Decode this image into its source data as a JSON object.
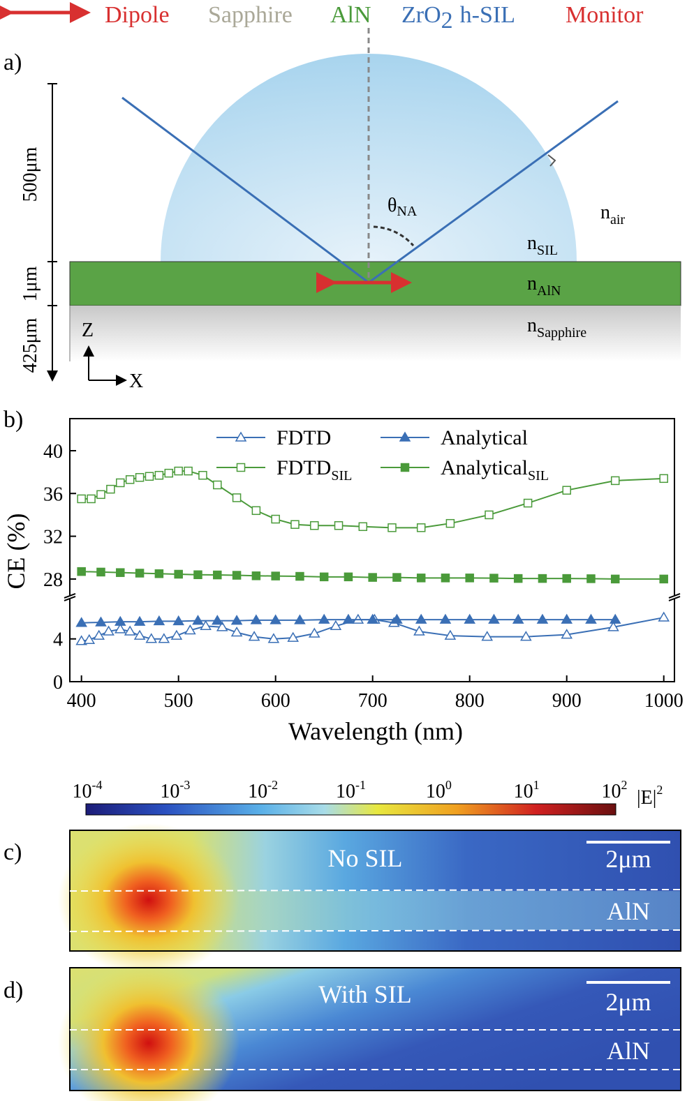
{
  "legend_top": {
    "dipole": "Dipole",
    "sapphire": "Sapphire",
    "aln": "AlN",
    "sil": {
      "text": "ZrO",
      "subscript": "2",
      "suffix": "h-SIL"
    },
    "monitor": "Monitor"
  },
  "panel_a": {
    "label": "a)",
    "dim_sil": "500μm",
    "dim_aln": "1μm",
    "dim_sapphire": "425μm",
    "theta": {
      "text": "θ",
      "subscript": "NA"
    },
    "n_air": {
      "text": "n",
      "subscript": "air"
    },
    "n_sil": {
      "text": "n",
      "subscript": "SIL"
    },
    "n_aln": {
      "text": "n",
      "subscript": "AlN"
    },
    "n_sapphire": {
      "text": "n",
      "subscript": "Sapphire"
    },
    "axis_z": "Z",
    "axis_x": "X"
  },
  "chart_data": {
    "type": "line",
    "panel_label": "b)",
    "xlabel": "Wavelength (nm)",
    "ylabel": "CE (%)",
    "xlim": [
      388,
      1011
    ],
    "xticks": [
      400,
      500,
      600,
      700,
      800,
      900,
      1000
    ],
    "ylim": [
      0,
      43
    ],
    "y_break": [
      7.9,
      26.3
    ],
    "yticks": [
      0,
      4,
      28,
      32,
      36,
      40
    ],
    "series": [
      {
        "name": "FDTD",
        "color": "#3a6fb5",
        "marker": "triangle",
        "filled": false,
        "x": [
          400,
          408,
          418,
          428,
          440,
          450,
          460,
          472,
          485,
          498,
          512,
          528,
          545,
          560,
          578,
          598,
          618,
          640,
          662,
          685,
          702,
          722,
          748,
          780,
          818,
          858,
          900,
          948,
          1000
        ],
        "values": [
          3.8,
          3.9,
          4.3,
          4.7,
          4.9,
          4.7,
          4.3,
          4.0,
          4.0,
          4.3,
          4.8,
          5.2,
          5.1,
          4.6,
          4.2,
          4.0,
          4.1,
          4.5,
          5.2,
          5.8,
          5.8,
          5.5,
          4.7,
          4.3,
          4.2,
          4.2,
          4.4,
          5.1,
          6.0
        ]
      },
      {
        "name": "Analytical",
        "color": "#3a6fb5",
        "marker": "triangle",
        "filled": true,
        "x": [
          400,
          420,
          440,
          460,
          480,
          500,
          520,
          540,
          560,
          580,
          600,
          625,
          650,
          675,
          700,
          725,
          750,
          775,
          800,
          825,
          850,
          875,
          900,
          925,
          950
        ],
        "values": [
          5.5,
          5.55,
          5.6,
          5.6,
          5.65,
          5.65,
          5.7,
          5.7,
          5.7,
          5.75,
          5.75,
          5.75,
          5.8,
          5.8,
          5.8,
          5.8,
          5.8,
          5.8,
          5.8,
          5.8,
          5.8,
          5.8,
          5.8,
          5.8,
          5.8
        ]
      },
      {
        "name": "FDTD",
        "name_subscript": "SIL",
        "color": "#4a9a3a",
        "marker": "square",
        "filled": false,
        "x": [
          400,
          410,
          420,
          430,
          440,
          450,
          460,
          470,
          480,
          490,
          500,
          510,
          525,
          540,
          560,
          580,
          600,
          620,
          640,
          665,
          690,
          720,
          750,
          780,
          820,
          860,
          900,
          950,
          1000
        ],
        "values": [
          35.5,
          35.5,
          35.9,
          36.4,
          37.0,
          37.3,
          37.5,
          37.6,
          37.7,
          37.9,
          38.1,
          38.1,
          37.7,
          36.8,
          35.6,
          34.4,
          33.6,
          33.1,
          33.0,
          33.0,
          32.9,
          32.8,
          32.8,
          33.2,
          34.0,
          35.1,
          36.3,
          37.2,
          37.4
        ]
      },
      {
        "name": "Analytical",
        "name_subscript": "SIL",
        "color": "#4a9a3a",
        "marker": "square",
        "filled": true,
        "x": [
          400,
          420,
          440,
          460,
          480,
          500,
          520,
          540,
          560,
          580,
          600,
          625,
          650,
          675,
          700,
          725,
          750,
          775,
          800,
          825,
          850,
          875,
          900,
          925,
          950,
          1000
        ],
        "values": [
          28.7,
          28.65,
          28.6,
          28.55,
          28.5,
          28.45,
          28.4,
          28.38,
          28.35,
          28.3,
          28.28,
          28.25,
          28.2,
          28.2,
          28.15,
          28.15,
          28.1,
          28.1,
          28.1,
          28.08,
          28.05,
          28.05,
          28.05,
          28.03,
          28.0,
          28.0
        ]
      }
    ]
  },
  "colorbar": {
    "ticks": [
      {
        "base": "10",
        "exponent": "-4"
      },
      {
        "base": "10",
        "exponent": "-3"
      },
      {
        "base": "10",
        "exponent": "-2"
      },
      {
        "base": "10",
        "exponent": "-1"
      },
      {
        "base": "10",
        "exponent": "0"
      },
      {
        "base": "10",
        "exponent": "1"
      },
      {
        "base": "10",
        "exponent": "2"
      }
    ],
    "label": {
      "text": "|E|",
      "superscript": "2"
    }
  },
  "panel_c": {
    "label": "c)",
    "title": "No SIL",
    "scale": "2μm",
    "layer": "AlN"
  },
  "panel_d": {
    "label": "d)",
    "title": "With SIL",
    "scale": "2μm",
    "layer": "AlN"
  }
}
